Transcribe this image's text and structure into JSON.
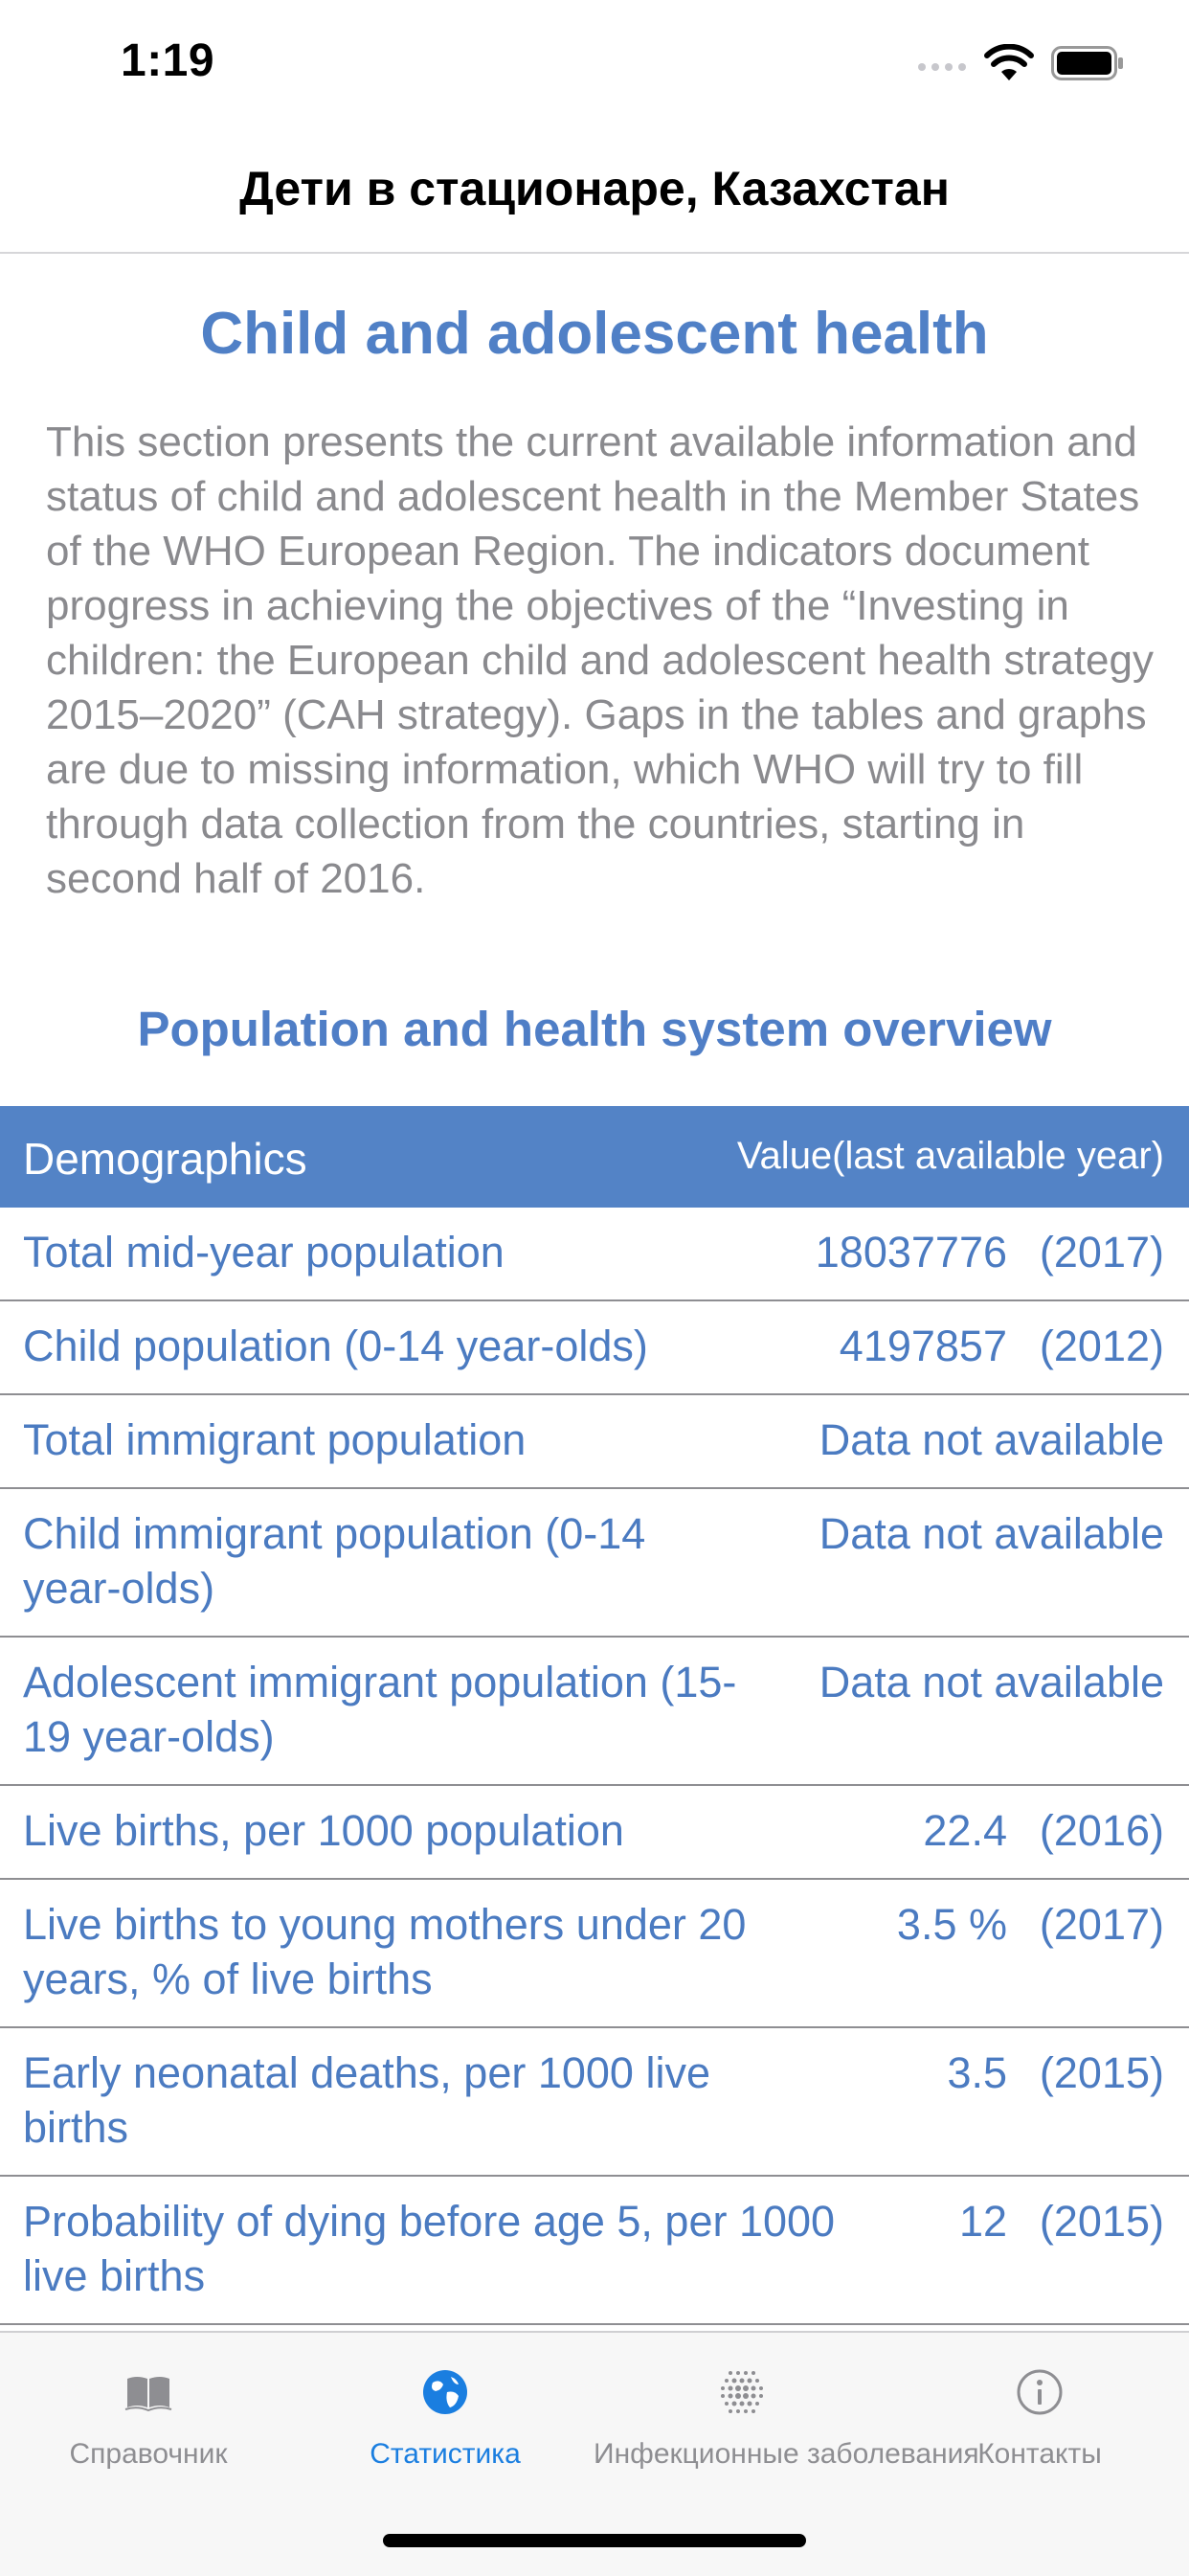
{
  "status_bar": {
    "time": "1:19"
  },
  "nav": {
    "title": "Дети в стационаре, Казахстан"
  },
  "content": {
    "heading": "Child and adolescent health",
    "intro": "This section presents the current available information and status of child and adolescent health in the Member States of the WHO European Region. The indicators document progress in achieving the objectives of the “Investing in children: the European child and adolescent health strategy 2015–2020” (CAH strategy). Gaps in the tables and graphs are due to missing information, which WHO will try to fill through data collection from the countries, starting in second half of 2016.",
    "section_heading": "Population and health system overview"
  },
  "table": {
    "header": {
      "col1": "Demographics",
      "col2": "Value(last available year)"
    },
    "rows": [
      {
        "label": "Total mid-year population",
        "value": "18037776",
        "year": "(2017)"
      },
      {
        "label": "Child population (0-14 year-olds)",
        "value": "4197857",
        "year": "(2012)"
      },
      {
        "label": "Total immigrant population",
        "value": "Data not available"
      },
      {
        "label": "Child immigrant population (0-14 year-olds)",
        "value": "Data not available"
      },
      {
        "label": "Adolescent immigrant population (15-19 year-olds)",
        "value": "Data not available"
      },
      {
        "label": "Live births, per 1000 population",
        "value": "22.4",
        "year": "(2016)"
      },
      {
        "label": "Live births to young mothers under 20 years, % of live births",
        "value": "3.5 %",
        "year": "(2017)"
      },
      {
        "label": "Early neonatal deaths, per 1000 live births",
        "value": "3.5",
        "year": "(2015)"
      },
      {
        "label": "Probability of dying before age 5, per 1000 live births",
        "value": "12",
        "year": "(2015)"
      }
    ]
  },
  "tab_bar": {
    "items": [
      {
        "label": "Справочник",
        "icon": "book-icon"
      },
      {
        "label": "Статистика",
        "icon": "globe-icon",
        "active": true
      },
      {
        "label": "Инфекционные заболевания",
        "icon": "dots-grid-icon"
      },
      {
        "label": "Контакты",
        "icon": "info-icon"
      }
    ]
  },
  "colors": {
    "accent": "#5383c6",
    "active_tab": "#1a7ee0",
    "muted": "#8e8e92"
  }
}
